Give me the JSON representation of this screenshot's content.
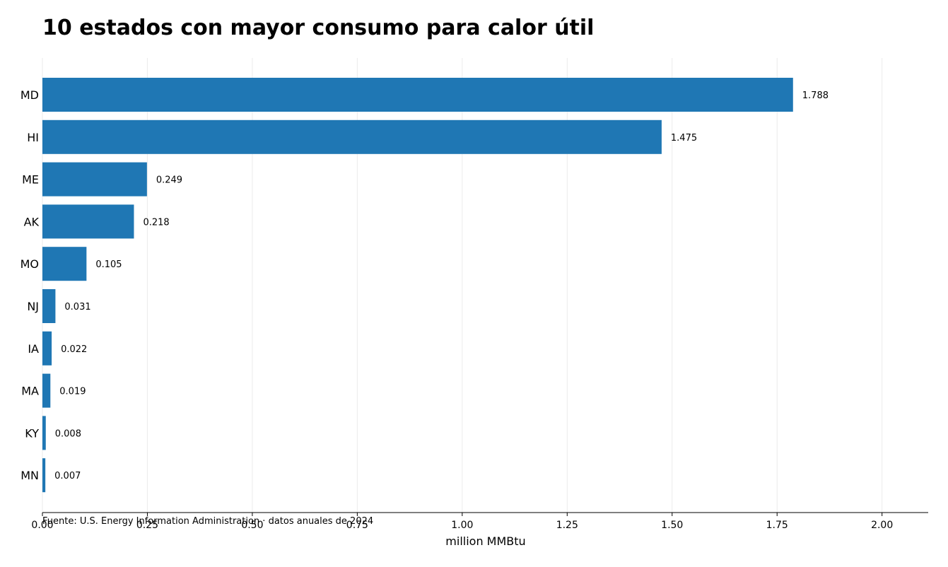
{
  "chart_data": {
    "type": "bar",
    "orientation": "horizontal",
    "title": "10 estados con mayor consumo para calor útil",
    "xlabel": "million MMBtu",
    "ylabel": "",
    "categories": [
      "MD",
      "HI",
      "ME",
      "AK",
      "MO",
      "NJ",
      "IA",
      "MA",
      "KY",
      "MN"
    ],
    "values": [
      1.788,
      1.475,
      0.249,
      0.218,
      0.105,
      0.031,
      0.022,
      0.019,
      0.008,
      0.007
    ],
    "value_labels": [
      "1.788",
      "1.475",
      "0.249",
      "0.218",
      "0.105",
      "0.031",
      "0.022",
      "0.019",
      "0.008",
      "0.007"
    ],
    "xlim": [
      0,
      2.11
    ],
    "xticks": [
      0,
      0.25,
      0.5,
      0.75,
      1.0,
      1.25,
      1.5,
      1.75,
      2.0
    ],
    "xtick_labels": [
      "0.00",
      "0.25",
      "0.50",
      "0.75",
      "1.00",
      "1.25",
      "1.50",
      "1.75",
      "2.00"
    ],
    "grid": "vertical",
    "legend": "none",
    "bar_color": "#1f77b4",
    "source": "Fuente: U.S. Energy Information Administration · datos anuales de 2024"
  }
}
